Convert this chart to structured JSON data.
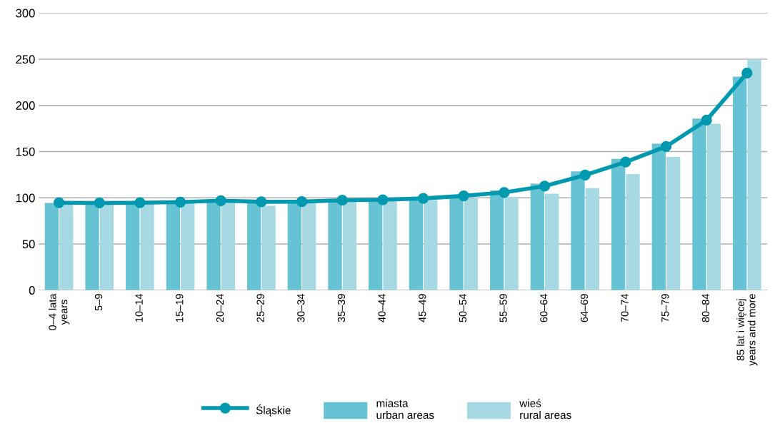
{
  "chart_data": {
    "type": "bar",
    "categories": [
      "0–4 lata\nyears",
      "5–9",
      "10–14",
      "15–19",
      "20–24",
      "25–29",
      "30–34",
      "35–39",
      "40–44",
      "45–49",
      "50–54",
      "55–59",
      "60–64",
      "64–69",
      "70–74",
      "75–79",
      "80–84",
      "85 lat i więcej\nyears and more"
    ],
    "series": [
      {
        "name": "miasta\nurban areas",
        "color": "#66c3d4",
        "values": [
          94.4,
          93.4,
          93.4,
          94.1,
          95.3,
          94.4,
          94.6,
          95.8,
          96.3,
          97,
          101.5,
          107.8,
          115.3,
          128.6,
          142,
          158.4,
          185.7,
          231
        ]
      },
      {
        "name": "wieś\nrural areas",
        "color": "#a6d9e4",
        "values": [
          93.9,
          93.1,
          93.4,
          94.1,
          95.1,
          91.2,
          94.6,
          95.6,
          96.1,
          97.5,
          99.8,
          101,
          104.4,
          110.3,
          125.6,
          144.2,
          180,
          250
        ]
      },
      {
        "name": "Śląskie",
        "type": "line",
        "color": "#0099b0",
        "values": [
          94.6,
          94.4,
          94.6,
          95.3,
          96.8,
          95.6,
          95.8,
          97.3,
          97.8,
          99.3,
          102,
          105.7,
          112.6,
          124.5,
          138.7,
          155.4,
          184,
          235
        ]
      }
    ],
    "ylim": [
      0,
      300
    ],
    "yticks": [
      0,
      50,
      100,
      150,
      200,
      250,
      300
    ],
    "grid": "y",
    "legend": "bottom",
    "marker": "circle",
    "line_style": "solid"
  }
}
